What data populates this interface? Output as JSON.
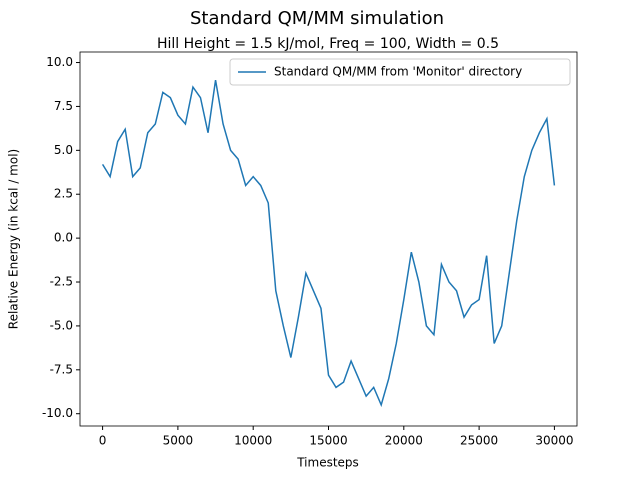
{
  "chart_data": {
    "type": "line",
    "title": "Standard QM/MM simulation",
    "subtitle": "Hill Height = 1.5 kJ/mol, Freq = 100, Width = 0.5",
    "x_label": "Timesteps",
    "y_label": "Relative Energy (in kcal / mol)",
    "x": [
      0,
      500,
      1000,
      1500,
      2000,
      2500,
      3000,
      3500,
      4000,
      4500,
      5000,
      5500,
      6000,
      6500,
      7000,
      7500,
      8000,
      8500,
      9000,
      9500,
      10000,
      10500,
      11000,
      11500,
      12000,
      12500,
      13000,
      13500,
      14000,
      14500,
      15000,
      15500,
      16000,
      16500,
      17000,
      17500,
      18000,
      18500,
      19000,
      19500,
      20000,
      20500,
      21000,
      21500,
      22000,
      22500,
      23000,
      23500,
      24000,
      24500,
      25000,
      25500,
      26000,
      26500,
      27000,
      27500,
      28000,
      28500,
      29000,
      29500,
      30000
    ],
    "series": [
      {
        "name": "Standard QM/MM from 'Monitor' directory",
        "color": "#1f77b4",
        "values": [
          4.2,
          3.5,
          5.5,
          6.2,
          3.5,
          4.0,
          6.0,
          6.5,
          8.3,
          8.0,
          7.0,
          6.5,
          8.6,
          8.0,
          6.0,
          9.0,
          6.5,
          5.0,
          4.5,
          3.0,
          3.5,
          3.0,
          2.0,
          -3.0,
          -5.0,
          -6.8,
          -4.5,
          -2.0,
          -3.0,
          -4.0,
          -7.8,
          -8.5,
          -8.2,
          -7.0,
          -8.0,
          -9.0,
          -8.5,
          -9.5,
          -8.0,
          -6.0,
          -3.5,
          -0.8,
          -2.5,
          -5.0,
          -5.5,
          -1.5,
          -2.5,
          -3.0,
          -4.5,
          -3.8,
          -3.5,
          -1.0,
          -6.0,
          -5.0,
          -2.0,
          1.0,
          3.5,
          5.0,
          6.0,
          6.8,
          3.0
        ]
      }
    ],
    "xlim": [
      -1500,
      31500
    ],
    "ylim": [
      -10.7,
      10.6
    ],
    "xticks": [
      0,
      5000,
      10000,
      15000,
      20000,
      25000,
      30000
    ],
    "yticks": [
      {
        "value": 10,
        "label": "10.0"
      },
      7.5,
      {
        "value": 5,
        "label": "5.0"
      },
      2.5,
      {
        "value": 0,
        "label": "0.0"
      },
      -2.5,
      {
        "value": -5,
        "label": "-5.0"
      },
      -7.5,
      {
        "value": -10,
        "label": "-10.0"
      }
    ],
    "legend": "upper right"
  }
}
